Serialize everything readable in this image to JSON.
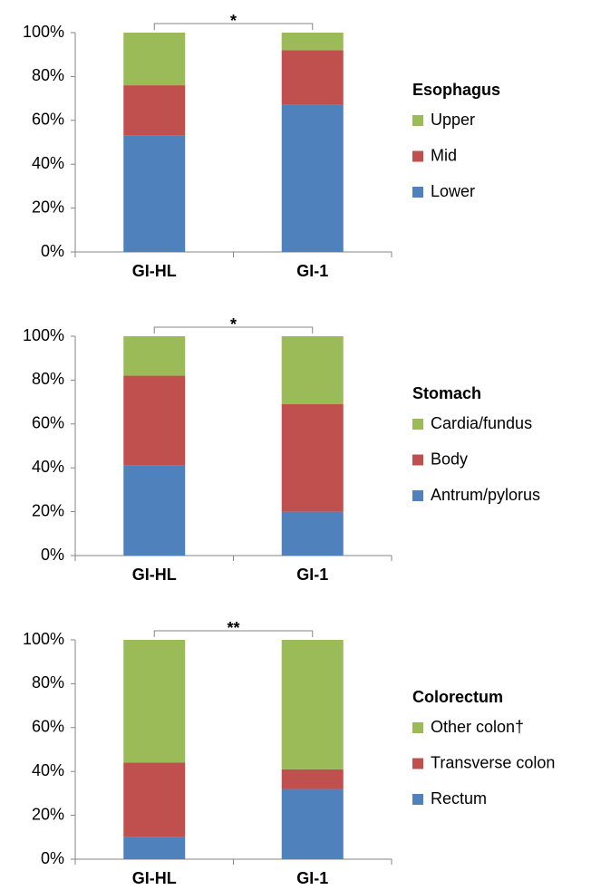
{
  "chart_data": [
    {
      "type": "stacked_bar",
      "legend_title": "Esophagus",
      "annotation": "*",
      "categories": [
        "GI-HL",
        "GI-1"
      ],
      "series": [
        {
          "name": "Lower",
          "color": "#4f81bd",
          "values": [
            53,
            67
          ]
        },
        {
          "name": "Mid",
          "color": "#c0504d",
          "values": [
            23,
            25
          ]
        },
        {
          "name": "Upper",
          "color": "#9bbb59",
          "values": [
            24,
            8
          ]
        }
      ],
      "ylim": [
        0,
        100
      ],
      "yticks": [
        {
          "value": 0,
          "label": "0%"
        },
        {
          "value": 20,
          "label": "20%"
        },
        {
          "value": 40,
          "label": "40%"
        },
        {
          "value": 60,
          "label": "60%"
        },
        {
          "value": 80,
          "label": "80%"
        },
        {
          "value": 100,
          "label": "100%"
        }
      ],
      "grid": false,
      "legend": "right"
    },
    {
      "type": "stacked_bar",
      "legend_title": "Stomach",
      "annotation": "*",
      "categories": [
        "GI-HL",
        "GI-1"
      ],
      "series": [
        {
          "name": "Antrum/pylorus",
          "color": "#4f81bd",
          "values": [
            41,
            20
          ]
        },
        {
          "name": "Body",
          "color": "#c0504d",
          "values": [
            41,
            49
          ]
        },
        {
          "name": "Cardia/fundus",
          "color": "#9bbb59",
          "values": [
            18,
            31
          ]
        }
      ],
      "ylim": [
        0,
        100
      ],
      "yticks": [
        {
          "value": 0,
          "label": "0%"
        },
        {
          "value": 20,
          "label": "20%"
        },
        {
          "value": 40,
          "label": "40%"
        },
        {
          "value": 60,
          "label": "60%"
        },
        {
          "value": 80,
          "label": "80%"
        },
        {
          "value": 100,
          "label": "100%"
        }
      ],
      "grid": false,
      "legend": "right"
    },
    {
      "type": "stacked_bar",
      "legend_title": "Colorectum",
      "annotation": "**",
      "categories": [
        "GI-HL",
        "GI-1"
      ],
      "series": [
        {
          "name": "Rectum",
          "color": "#4f81bd",
          "values": [
            10,
            32
          ]
        },
        {
          "name": "Transverse colon",
          "color": "#c0504d",
          "values": [
            34,
            9
          ]
        },
        {
          "name": "Other colon†",
          "color": "#9bbb59",
          "values": [
            56,
            59
          ]
        }
      ],
      "ylim": [
        0,
        100
      ],
      "yticks": [
        {
          "value": 0,
          "label": "0%"
        },
        {
          "value": 20,
          "label": "20%"
        },
        {
          "value": 40,
          "label": "40%"
        },
        {
          "value": 60,
          "label": "60%"
        },
        {
          "value": 80,
          "label": "80%"
        },
        {
          "value": 100,
          "label": "100%"
        }
      ],
      "grid": false,
      "legend": "right"
    }
  ]
}
